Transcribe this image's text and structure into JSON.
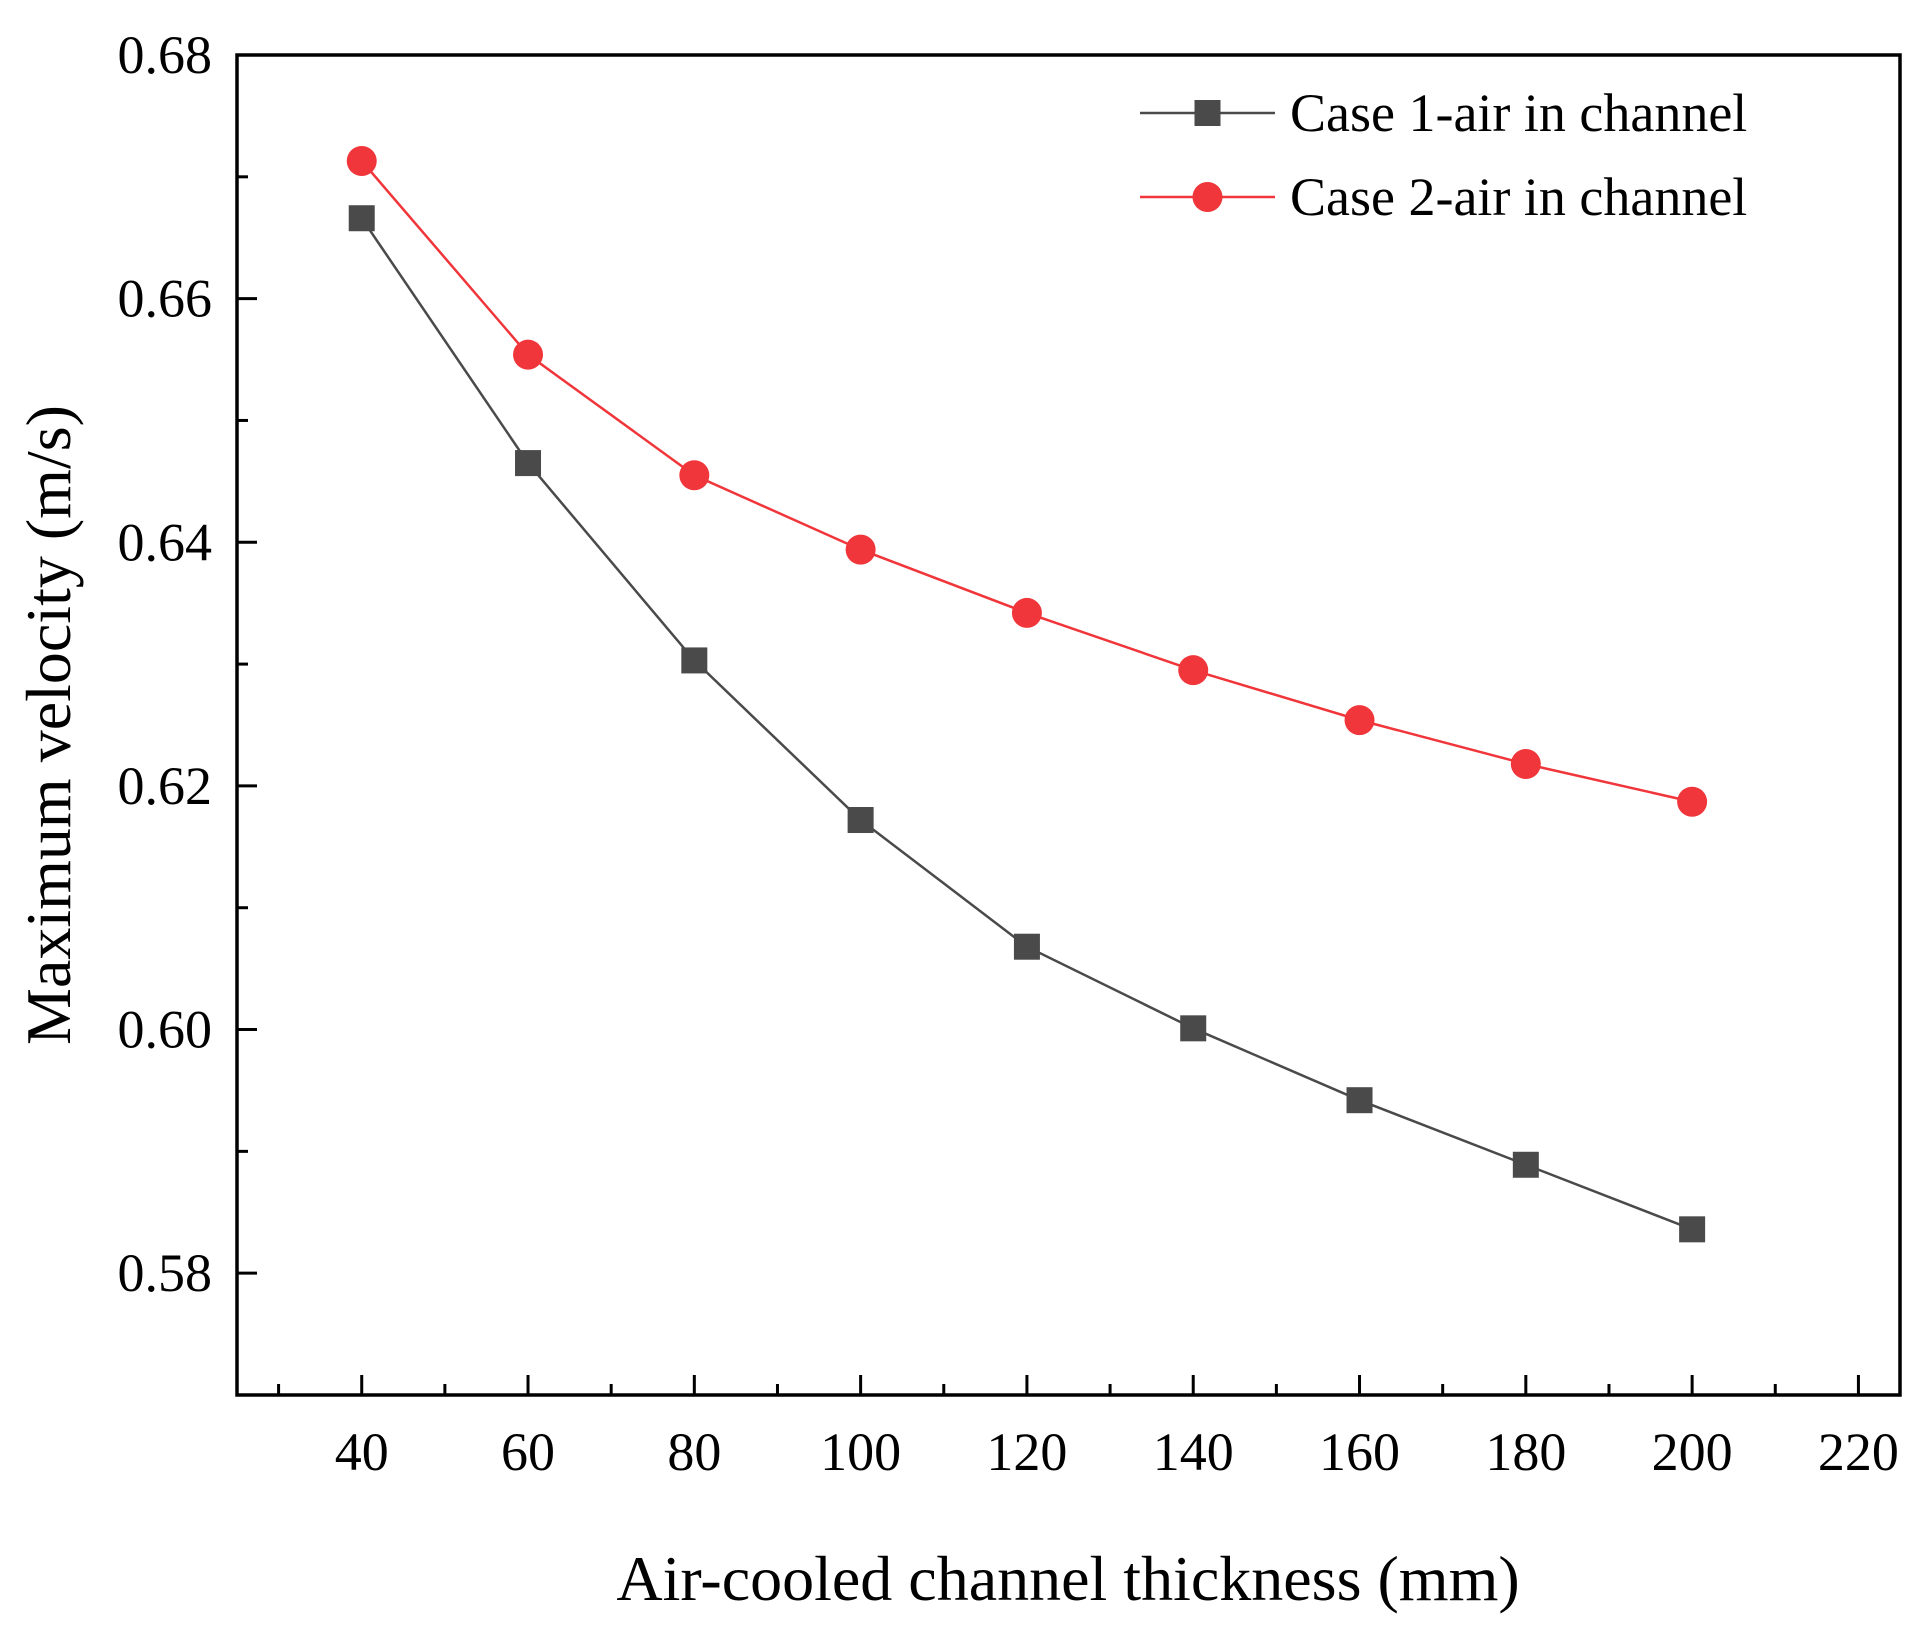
{
  "chart_data": {
    "type": "line",
    "title": "",
    "xlabel": "Air-cooled channel thickness (mm)",
    "ylabel": "Maximum velocity (m/s)",
    "xlim": [
      25,
      225
    ],
    "ylim": [
      0.57,
      0.68
    ],
    "xticks": [
      40,
      60,
      80,
      100,
      120,
      140,
      160,
      180,
      200,
      220
    ],
    "xtick_labels": [
      "40",
      "60",
      "80",
      "100",
      "120",
      "140",
      "160",
      "180",
      "200",
      "220"
    ],
    "xticks_minor": [
      30,
      50,
      70,
      90,
      110,
      130,
      150,
      170,
      190,
      210
    ],
    "yticks": [
      0.58,
      0.6,
      0.62,
      0.64,
      0.66,
      0.68
    ],
    "ytick_labels": [
      "0.58",
      "0.60",
      "0.62",
      "0.64",
      "0.66",
      "0.68"
    ],
    "yticks_minor": [
      0.57,
      0.59,
      0.61,
      0.63,
      0.65,
      0.67
    ],
    "grid": false,
    "legend_position": "top-right",
    "x": [
      40,
      60,
      80,
      100,
      120,
      140,
      160,
      180,
      200
    ],
    "series": [
      {
        "name": "Case 1-air in channel",
        "marker": "square",
        "color": "#4a4a4a",
        "line_color": "#4a4a4a",
        "values": [
          0.6666,
          0.6465,
          0.6303,
          0.6172,
          0.6068,
          0.6001,
          0.5942,
          0.5889,
          0.5836
        ]
      },
      {
        "name": "Case 2-air in channel",
        "marker": "circle",
        "color": "#f0363a",
        "line_color": "#f0363a",
        "values": [
          0.6713,
          0.6554,
          0.6455,
          0.6394,
          0.6342,
          0.6295,
          0.6254,
          0.6218,
          0.6187
        ]
      }
    ]
  }
}
